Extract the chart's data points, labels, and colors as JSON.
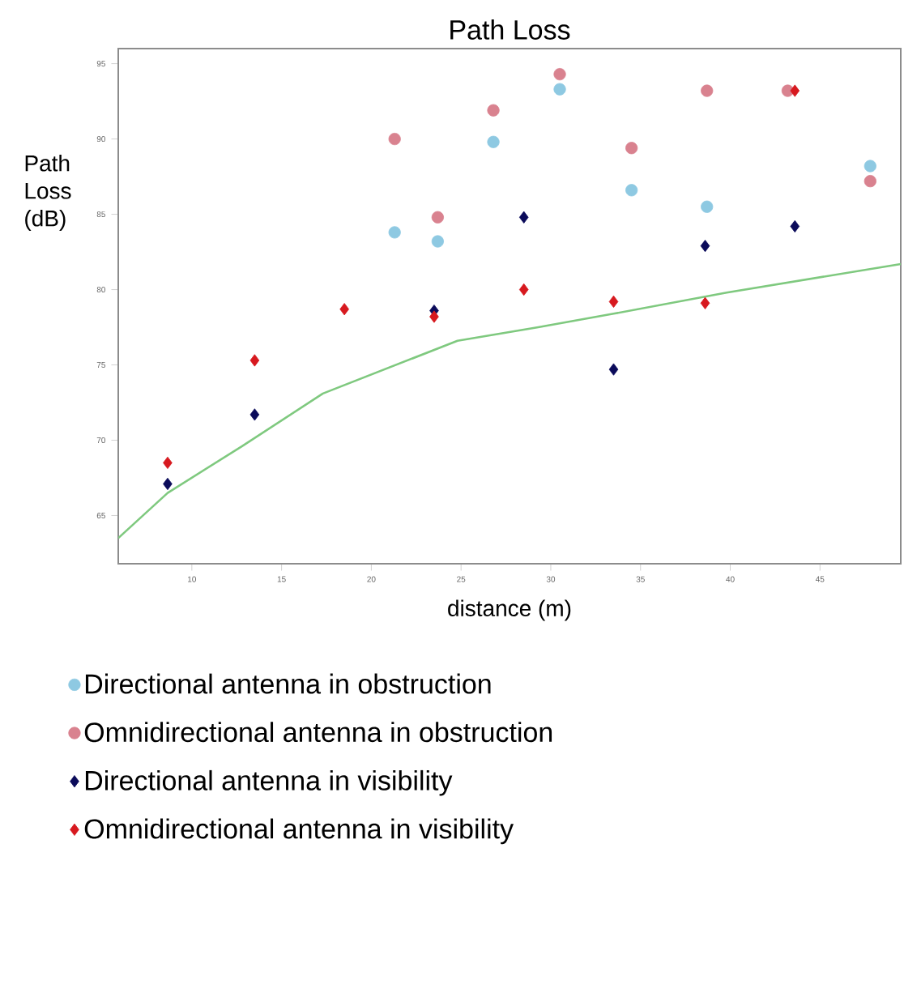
{
  "chart_data": {
    "type": "scatter",
    "title": "Path Loss",
    "xlabel": "distance (m)",
    "ylabel": "Path Loss (dB)",
    "xlim": [
      5.9,
      49.5
    ],
    "ylim": [
      61.8,
      96
    ],
    "xticks": [
      10,
      15,
      20,
      25,
      30,
      35,
      40,
      45
    ],
    "yticks": [
      65,
      70,
      75,
      80,
      85,
      90,
      95
    ],
    "grid": false,
    "legend": "bottom",
    "series": [
      {
        "name": "Directional antenna in obstruction",
        "color": "#8ec9e2",
        "marker": "circle",
        "x": [
          21.3,
          23.7,
          26.8,
          30.5,
          34.5,
          38.7,
          43.2,
          47.8
        ],
        "values": [
          83.8,
          83.2,
          89.8,
          93.3,
          86.6,
          85.5,
          null,
          88.2
        ]
      },
      {
        "name": "Omnidirectional antenna in obstruction",
        "color": "#d9828f",
        "marker": "circle",
        "x": [
          21.3,
          23.7,
          26.8,
          30.5,
          34.5,
          38.7,
          43.2,
          47.8
        ],
        "values": [
          90,
          84.8,
          91.9,
          94.3,
          89.4,
          93.2,
          93.2,
          87.2
        ]
      },
      {
        "name": "Directional antenna in visibility",
        "color": "#0b0b5a",
        "marker": "diamond",
        "x": [
          8.65,
          13.5,
          18.5,
          23.5,
          28.5,
          33.5,
          38.6,
          43.6
        ],
        "values": [
          67.1,
          71.7,
          null,
          78.6,
          84.8,
          74.7,
          82.9,
          84.2
        ]
      },
      {
        "name": "Omnidirectional antenna in visibility",
        "color": "#d7191f",
        "marker": "diamond",
        "x": [
          8.65,
          13.5,
          18.5,
          23.5,
          28.5,
          33.5,
          38.6,
          43.6
        ],
        "values": [
          68.5,
          75.3,
          78.7,
          78.2,
          80.0,
          79.2,
          79.1,
          93.2
        ]
      },
      {
        "type": "line",
        "color": "#7fc97f",
        "marker": "none",
        "x": [
          5.9,
          8.65,
          12.8,
          17.3,
          24.8,
          29.3,
          33.5,
          39.8,
          49.5
        ],
        "values": [
          63.5,
          66.5,
          69.6,
          73.1,
          76.6,
          77.5,
          78.4,
          79.8,
          81.7
        ]
      }
    ]
  }
}
